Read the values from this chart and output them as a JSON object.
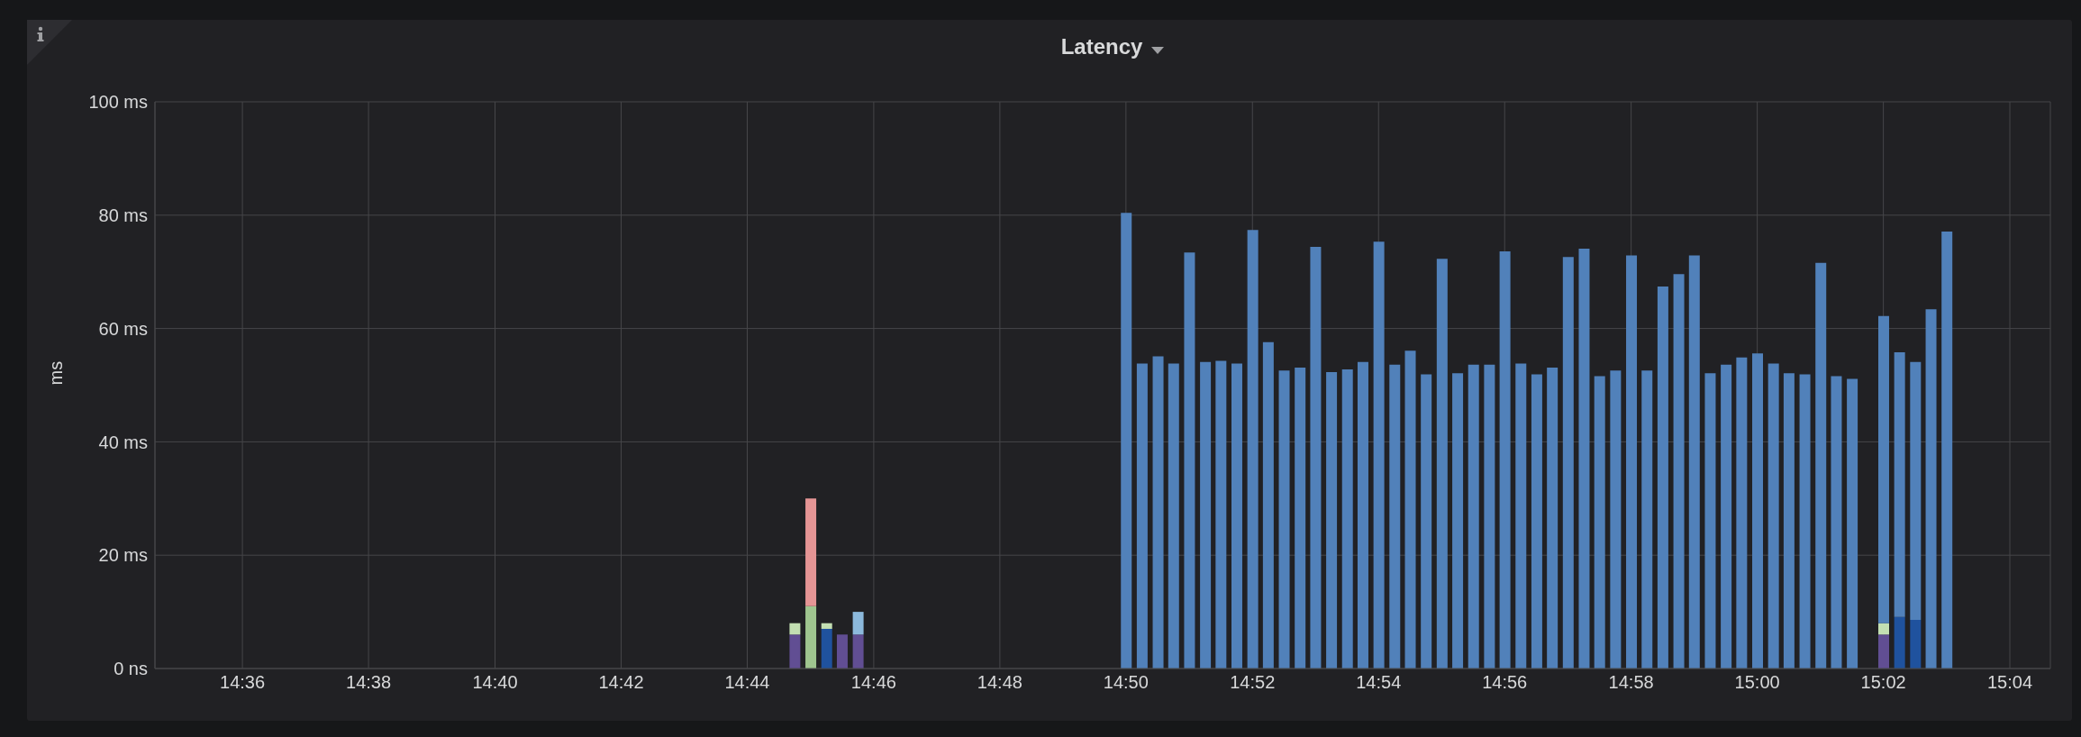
{
  "chart_data": {
    "type": "bar",
    "title": "Latency",
    "ylabel": "ms",
    "stacked": true,
    "grid": true,
    "xlim": [
      14.5769,
      15.0774
    ],
    "xticks": [
      {
        "value": 14.6,
        "label": "14:36"
      },
      {
        "value": 14.6333,
        "label": "14:38"
      },
      {
        "value": 14.6667,
        "label": "14:40"
      },
      {
        "value": 14.7,
        "label": "14:42"
      },
      {
        "value": 14.7333,
        "label": "14:44"
      },
      {
        "value": 14.7667,
        "label": "14:46"
      },
      {
        "value": 14.8,
        "label": "14:48"
      },
      {
        "value": 14.8333,
        "label": "14:50"
      },
      {
        "value": 14.8667,
        "label": "14:52"
      },
      {
        "value": 14.9,
        "label": "14:54"
      },
      {
        "value": 14.9333,
        "label": "14:56"
      },
      {
        "value": 14.9667,
        "label": "14:58"
      },
      {
        "value": 15,
        "label": "15:00"
      },
      {
        "value": 15.0333,
        "label": "15:02"
      },
      {
        "value": 15.0667,
        "label": "15:04"
      }
    ],
    "ylim": [
      0,
      100
    ],
    "yticks": [
      {
        "value": 0,
        "label": "0 ns"
      },
      {
        "value": 20,
        "label": "20 ms"
      },
      {
        "value": 40,
        "label": "40 ms"
      },
      {
        "value": 60,
        "label": "60 ms"
      },
      {
        "value": 80,
        "label": "80 ms"
      },
      {
        "value": 100,
        "label": "100 ms"
      }
    ],
    "x": [
      14.7458,
      14.75,
      14.7542,
      14.7583,
      14.7625,
      14.8333,
      14.8375,
      14.8417,
      14.8458,
      14.85,
      14.8542,
      14.8583,
      14.8625,
      14.8667,
      14.8708,
      14.875,
      14.8792,
      14.8833,
      14.8875,
      14.8917,
      14.8958,
      14.9,
      14.9042,
      14.9083,
      14.9125,
      14.9167,
      14.9208,
      14.925,
      14.9292,
      14.9333,
      14.9375,
      14.9417,
      14.9458,
      14.95,
      14.9542,
      14.9583,
      14.9625,
      14.9667,
      14.9708,
      14.975,
      14.9792,
      14.9833,
      14.9875,
      14.9917,
      14.9958,
      15,
      15.0042,
      15.0083,
      15.0125,
      15.0167,
      15.0208,
      15.025,
      15.0333,
      15.0375,
      15.0417,
      15.0458,
      15.05
    ],
    "series": [
      {
        "color": "#614e93",
        "values": [
          6.0,
          null,
          null,
          6.0,
          6.0,
          null,
          null,
          null,
          null,
          null,
          null,
          null,
          null,
          null,
          null,
          null,
          null,
          null,
          null,
          null,
          null,
          null,
          null,
          null,
          null,
          null,
          null,
          null,
          null,
          null,
          null,
          null,
          null,
          null,
          null,
          null,
          null,
          null,
          null,
          null,
          null,
          null,
          null,
          null,
          null,
          null,
          null,
          null,
          null,
          null,
          null,
          null,
          6.0,
          null,
          null,
          null,
          null
        ]
      },
      {
        "color": "#1f529e",
        "values": [
          null,
          null,
          7.0,
          null,
          null,
          null,
          null,
          null,
          null,
          null,
          null,
          null,
          null,
          null,
          null,
          null,
          null,
          null,
          null,
          null,
          null,
          null,
          null,
          null,
          null,
          null,
          null,
          null,
          null,
          null,
          null,
          null,
          null,
          null,
          null,
          null,
          null,
          null,
          null,
          null,
          null,
          null,
          null,
          null,
          null,
          null,
          null,
          null,
          null,
          null,
          null,
          null,
          null,
          9.1,
          8.6,
          null,
          null
        ]
      },
      {
        "color": "#9fc58f",
        "values": [
          null,
          11.0,
          null,
          null,
          null,
          null,
          null,
          null,
          null,
          null,
          null,
          null,
          null,
          null,
          null,
          null,
          null,
          null,
          null,
          null,
          null,
          null,
          null,
          null,
          null,
          null,
          null,
          null,
          null,
          null,
          null,
          null,
          null,
          null,
          null,
          null,
          null,
          null,
          null,
          null,
          null,
          null,
          null,
          null,
          null,
          null,
          null,
          null,
          null,
          null,
          null,
          null,
          null,
          null,
          null,
          null,
          null
        ]
      },
      {
        "color": "#c3dfb2",
        "values": [
          2.0,
          null,
          1.0,
          null,
          null,
          null,
          null,
          null,
          null,
          null,
          null,
          null,
          null,
          null,
          null,
          null,
          null,
          null,
          null,
          null,
          null,
          null,
          null,
          null,
          null,
          null,
          null,
          null,
          null,
          null,
          null,
          null,
          null,
          null,
          null,
          null,
          null,
          null,
          null,
          null,
          null,
          null,
          null,
          null,
          null,
          null,
          null,
          null,
          null,
          null,
          null,
          null,
          2.0,
          null,
          null,
          null,
          null
        ]
      },
      {
        "color": "#8cb9dc",
        "values": [
          null,
          null,
          null,
          null,
          4.0,
          null,
          null,
          null,
          null,
          null,
          null,
          null,
          null,
          null,
          null,
          null,
          null,
          null,
          null,
          null,
          null,
          null,
          null,
          null,
          null,
          null,
          null,
          null,
          null,
          null,
          null,
          null,
          null,
          null,
          null,
          null,
          null,
          null,
          null,
          null,
          null,
          null,
          null,
          null,
          null,
          null,
          null,
          null,
          null,
          null,
          null,
          null,
          null,
          null,
          null,
          null,
          null
        ]
      },
      {
        "color": "#e59595",
        "values": [
          null,
          19.0,
          null,
          null,
          null,
          null,
          null,
          null,
          null,
          null,
          null,
          null,
          null,
          null,
          null,
          null,
          null,
          null,
          null,
          null,
          null,
          null,
          null,
          null,
          null,
          null,
          null,
          null,
          null,
          null,
          null,
          null,
          null,
          null,
          null,
          null,
          null,
          null,
          null,
          null,
          null,
          null,
          null,
          null,
          null,
          null,
          null,
          null,
          null,
          null,
          null,
          null,
          null,
          null,
          null,
          null,
          null
        ]
      },
      {
        "color": "#5181ba",
        "values": [
          null,
          null,
          null,
          null,
          null,
          80.4,
          53.8,
          55.1,
          53.8,
          73.4,
          54.1,
          54.3,
          53.8,
          77.4,
          57.6,
          52.6,
          53.1,
          74.4,
          52.3,
          52.8,
          54.1,
          75.3,
          53.6,
          56.1,
          51.9,
          72.3,
          52.1,
          53.6,
          53.6,
          73.6,
          53.8,
          51.9,
          53.1,
          72.6,
          74.1,
          51.6,
          52.6,
          72.9,
          52.6,
          67.4,
          69.6,
          72.9,
          52.1,
          53.6,
          54.9,
          55.6,
          53.8,
          52.1,
          51.9,
          71.6,
          51.6,
          51.1,
          54.2,
          46.7,
          45.5,
          63.4,
          77.1
        ]
      }
    ]
  }
}
